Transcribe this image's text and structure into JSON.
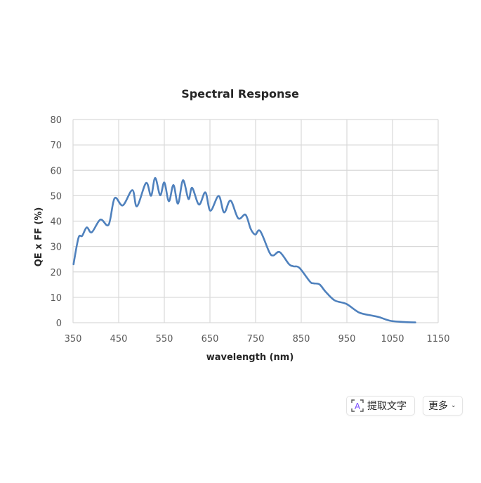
{
  "chart_data": {
    "type": "line",
    "title": "Spectral Response",
    "xlabel": "wavelength (nm)",
    "ylabel": "QE x FF (%)",
    "xlim": [
      350,
      1150
    ],
    "ylim": [
      0,
      80
    ],
    "x_ticks": [
      350,
      450,
      550,
      650,
      750,
      850,
      950,
      1050,
      1150
    ],
    "y_ticks": [
      0,
      10,
      20,
      30,
      40,
      50,
      60,
      70,
      80
    ],
    "grid": true,
    "legend": null,
    "line_color": "#4f81bd",
    "series": [
      {
        "name": "QE x FF",
        "x": [
          351,
          362,
          370,
          380,
          391,
          410,
          428,
          441,
          459,
          480,
          490,
          510,
          521,
          530,
          541,
          550,
          560,
          570,
          580,
          591,
          603,
          611,
          626,
          640,
          651,
          669,
          681,
          695,
          712,
          728,
          739,
          749,
          760,
          780,
          789,
          803,
          823,
          833,
          846,
          869,
          877,
          890,
          903,
          923,
          949,
          977,
          1005,
          1021,
          1044,
          1072,
          1100
        ],
        "values": [
          23,
          33.4,
          34.2,
          37.5,
          35.6,
          40.6,
          38.6,
          49,
          46.2,
          52.2,
          45.8,
          55,
          50,
          57,
          50.2,
          55.2,
          47.8,
          54.2,
          46.9,
          56.1,
          48.7,
          53.1,
          46.5,
          51.3,
          44.1,
          49.9,
          43.4,
          48.1,
          41.1,
          42.5,
          37,
          34.7,
          36.1,
          27.8,
          26.5,
          27.8,
          23.1,
          22.2,
          21.6,
          16.2,
          15.5,
          15.1,
          12.3,
          8.8,
          7.4,
          4.0,
          2.8,
          2.2,
          0.8,
          0.3,
          0.1
        ]
      }
    ]
  },
  "toolbar": {
    "extract_text_label": "提取文字",
    "extract_icon": "text-scan-icon",
    "more_label": "更多",
    "more_icon": "chevron-down-icon",
    "chevron_glyph": "⌄",
    "ocr_glyph": "A"
  }
}
